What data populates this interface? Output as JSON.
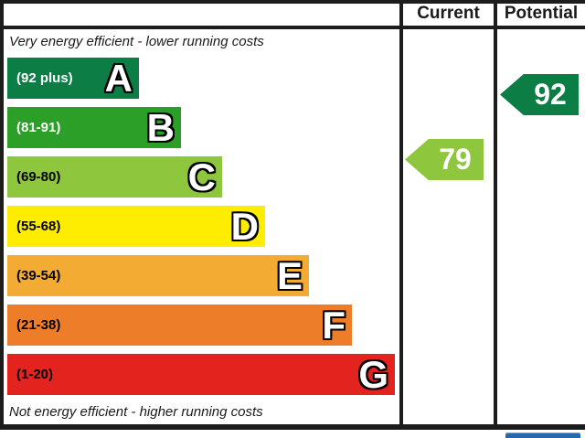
{
  "header": {
    "current_label": "Current",
    "potential_label": "Potential"
  },
  "captions": {
    "top": "Very energy efficient - lower running costs",
    "bottom": "Not energy efficient - higher running costs"
  },
  "chart_data": {
    "type": "bar",
    "description": "EPC energy efficiency rating scale",
    "bands": [
      {
        "letter": "A",
        "range_label": "(92 plus)",
        "score_min": 92,
        "score_max": 100,
        "color": "#0c7d44",
        "text_color": "#ffffff",
        "width_frac": 0.34
      },
      {
        "letter": "B",
        "range_label": "(81-91)",
        "score_min": 81,
        "score_max": 91,
        "color": "#2c9f29",
        "text_color": "#ffffff",
        "width_frac": 0.448
      },
      {
        "letter": "C",
        "range_label": "(69-80)",
        "score_min": 69,
        "score_max": 80,
        "color": "#8ec63e",
        "text_color": "#000000",
        "width_frac": 0.554
      },
      {
        "letter": "D",
        "range_label": "(55-68)",
        "score_min": 55,
        "score_max": 68,
        "color": "#ffed00",
        "text_color": "#000000",
        "width_frac": 0.665
      },
      {
        "letter": "E",
        "range_label": "(39-54)",
        "score_min": 39,
        "score_max": 54,
        "color": "#f4ab33",
        "text_color": "#000000",
        "width_frac": 0.778
      },
      {
        "letter": "F",
        "range_label": "(21-38)",
        "score_min": 21,
        "score_max": 38,
        "color": "#ee7d29",
        "text_color": "#000000",
        "width_frac": 0.889
      },
      {
        "letter": "G",
        "range_label": "(1-20)",
        "score_min": 1,
        "score_max": 20,
        "color": "#e3231e",
        "text_color": "#000000",
        "width_frac": 1.0
      }
    ],
    "markers": {
      "current": {
        "value": 79,
        "column": "Current",
        "color": "#8ec63e"
      },
      "potential": {
        "value": 92,
        "column": "Potential",
        "color": "#0c7d44"
      }
    },
    "layout": {
      "band_top_start": 63,
      "band_pitch": 54,
      "band_height": 45,
      "band_max_width": 424
    }
  },
  "colors": {
    "border": "#1d1d1b",
    "eu_logo_blue": "#2469b0"
  }
}
